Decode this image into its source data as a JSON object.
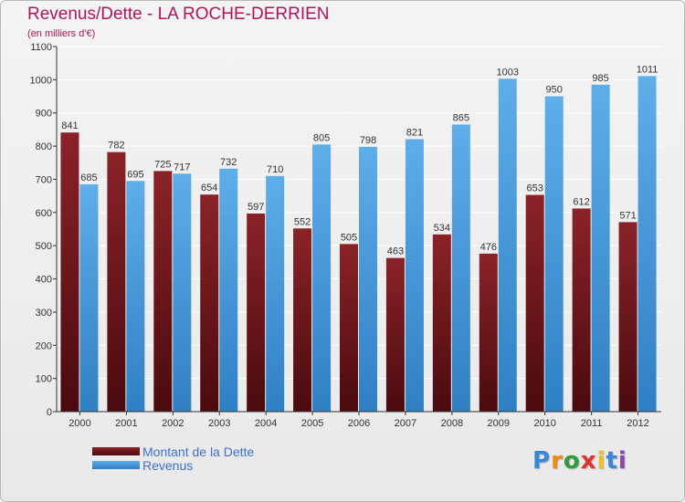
{
  "header": {
    "title": "Revenus/Dette - LA ROCHE-DERRIEN",
    "subtitle": "(en milliers d'€)"
  },
  "legend": {
    "dette_label": "Montant de la Dette",
    "revenus_label": "Revenus"
  },
  "logo": {
    "text": "Proxiti",
    "letter_colors": [
      "#3a86d6",
      "#f08a12",
      "#2f9b3a",
      "#e0322e",
      "#f0c020",
      "#3a86d6",
      "#8e44ad"
    ]
  },
  "colors": {
    "dette": "#7a1a1e",
    "dette_dark": "#4a0a0e",
    "revenus": "#57a7e6",
    "revenus_dark": "#2f7fc4",
    "grid": "#ffffff",
    "axis_text": "#333333",
    "title": "#b0155a",
    "legend_text": "#3d6fd6"
  },
  "chart_data": {
    "type": "bar",
    "categories": [
      "2000",
      "2001",
      "2002",
      "2003",
      "2004",
      "2005",
      "2006",
      "2007",
      "2008",
      "2009",
      "2010",
      "2011",
      "2012"
    ],
    "series": [
      {
        "name": "Montant de la Dette",
        "values": [
          841,
          782,
          725,
          654,
          597,
          552,
          505,
          463,
          534,
          476,
          653,
          612,
          571
        ]
      },
      {
        "name": "Revenus",
        "values": [
          685,
          695,
          717,
          732,
          710,
          805,
          798,
          821,
          865,
          1003,
          950,
          985,
          1011
        ]
      }
    ],
    "title": "Revenus/Dette - LA ROCHE-DERRIEN",
    "ylabel": "(en milliers d'€)",
    "ylim": [
      0,
      1100
    ],
    "yticks": [
      0,
      100,
      200,
      300,
      400,
      500,
      600,
      700,
      800,
      900,
      1000,
      1100
    ],
    "grid": true,
    "legend_position": "bottom-left"
  }
}
